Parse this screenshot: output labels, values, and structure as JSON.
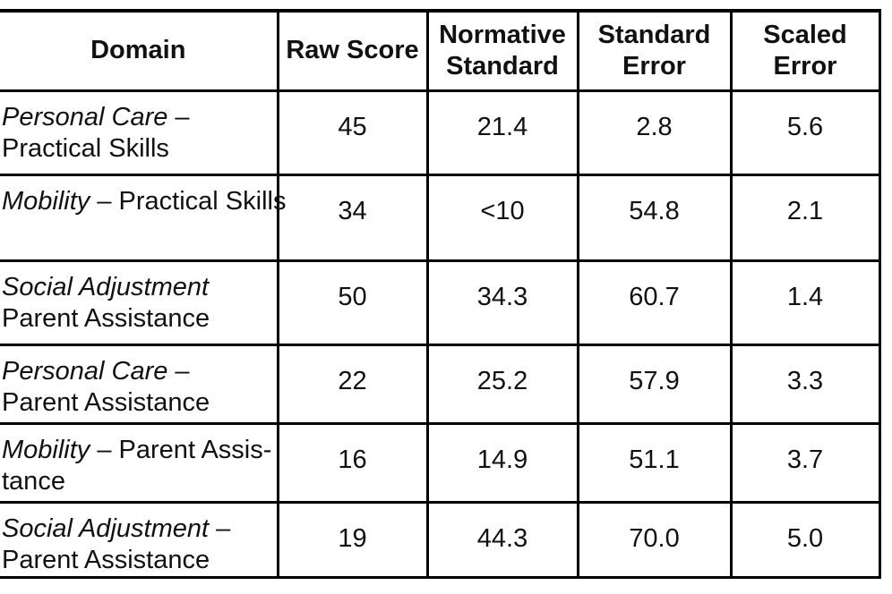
{
  "page": {
    "background_color": "#ffffff",
    "text_color": "#111111",
    "border_color": "#000000"
  },
  "table": {
    "columns": [
      {
        "id": "domain",
        "label": "Domain",
        "lines": [
          "Domain"
        ]
      },
      {
        "id": "raw-score",
        "label": "Raw Score",
        "lines": [
          "Raw Score"
        ]
      },
      {
        "id": "normative-standard",
        "label": "Normative Standard",
        "lines": [
          "Normative",
          "Standard"
        ]
      },
      {
        "id": "standard-error",
        "label": "Standard Error",
        "lines": [
          "Standard",
          "Error"
        ]
      },
      {
        "id": "scaled-error",
        "label": "Scaled Error",
        "lines": [
          "Scaled",
          "Error"
        ]
      }
    ],
    "rows": [
      {
        "domain_lines": [
          [
            {
              "text": "Personal Care",
              "italic": true
            },
            {
              "text": " –",
              "italic": false
            }
          ],
          [
            {
              "text": "Practical Skills",
              "italic": false
            }
          ]
        ],
        "raw_score": "45",
        "normative_standard": "21.4",
        "standard_error": "2.8",
        "scaled_error": "5.6"
      },
      {
        "domain_lines": [
          [
            {
              "text": "Mobility",
              "italic": true
            },
            {
              "text": " – Practical Skills",
              "italic": false
            }
          ]
        ],
        "nowrap": true,
        "raw_score": "34",
        "normative_standard": "<10",
        "standard_error": "54.8",
        "scaled_error": "2.1"
      },
      {
        "domain_lines": [
          [
            {
              "text": "Social Adjustment",
              "italic": true
            }
          ],
          [
            {
              "text": "Parent Assistance",
              "italic": false
            }
          ]
        ],
        "raw_score": "50",
        "normative_standard": "34.3",
        "standard_error": "60.7",
        "scaled_error": "1.4"
      },
      {
        "domain_lines": [
          [
            {
              "text": "Personal Care",
              "italic": true
            },
            {
              "text": " –",
              "italic": false
            }
          ],
          [
            {
              "text": "Parent Assistance",
              "italic": false
            }
          ]
        ],
        "raw_score": "22",
        "normative_standard": "25.2",
        "standard_error": "57.9",
        "scaled_error": "3.3"
      },
      {
        "domain_lines": [
          [
            {
              "text": "Mobility",
              "italic": true
            },
            {
              "text": " – Parent Assis-",
              "italic": false
            }
          ],
          [
            {
              "text": "tance",
              "italic": false
            }
          ]
        ],
        "raw_score": "16",
        "normative_standard": "14.9",
        "standard_error": "51.1",
        "scaled_error": "3.7"
      },
      {
        "domain_lines": [
          [
            {
              "text": "Social Adjustment",
              "italic": true
            },
            {
              "text": " –",
              "italic": false
            }
          ],
          [
            {
              "text": "Parent Assistance",
              "italic": false
            }
          ]
        ],
        "raw_score": "19",
        "normative_standard": "44.3",
        "standard_error": "70.0",
        "scaled_error": "5.0"
      }
    ]
  },
  "chart_data": {
    "type": "table",
    "columns": [
      "Domain",
      "Raw Score",
      "Normative Standard",
      "Standard Error",
      "Scaled Error"
    ],
    "rows": [
      [
        "Personal Care – Practical Skills",
        "45",
        "21.4",
        "2.8",
        "5.6"
      ],
      [
        "Mobility – Practical Skills",
        "34",
        "<10",
        "54.8",
        "2.1"
      ],
      [
        "Social Adjustment Parent Assistance",
        "50",
        "34.3",
        "60.7",
        "1.4"
      ],
      [
        "Personal Care – Parent Assistance",
        "22",
        "25.2",
        "57.9",
        "3.3"
      ],
      [
        "Mobility – Parent Assistance",
        "16",
        "14.9",
        "51.1",
        "3.7"
      ],
      [
        "Social Adjustment – Parent Assistance",
        "19",
        "44.3",
        "70.0",
        "5.0"
      ]
    ]
  }
}
